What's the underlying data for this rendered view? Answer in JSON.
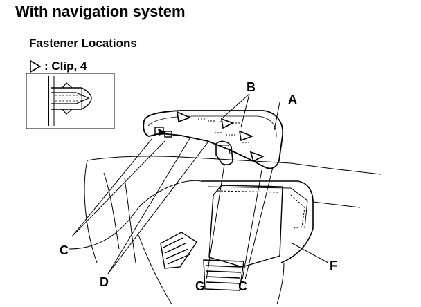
{
  "header": {
    "title": "With navigation system",
    "subtitle": "Fastener Locations"
  },
  "legend": {
    "symbol_icon": "clip-triangle-icon",
    "label": ": Clip, 4"
  },
  "callouts": {
    "A": "A",
    "B": "B",
    "C_left": "C",
    "C_right": "C",
    "D": "D",
    "F": "F",
    "G": "G"
  }
}
